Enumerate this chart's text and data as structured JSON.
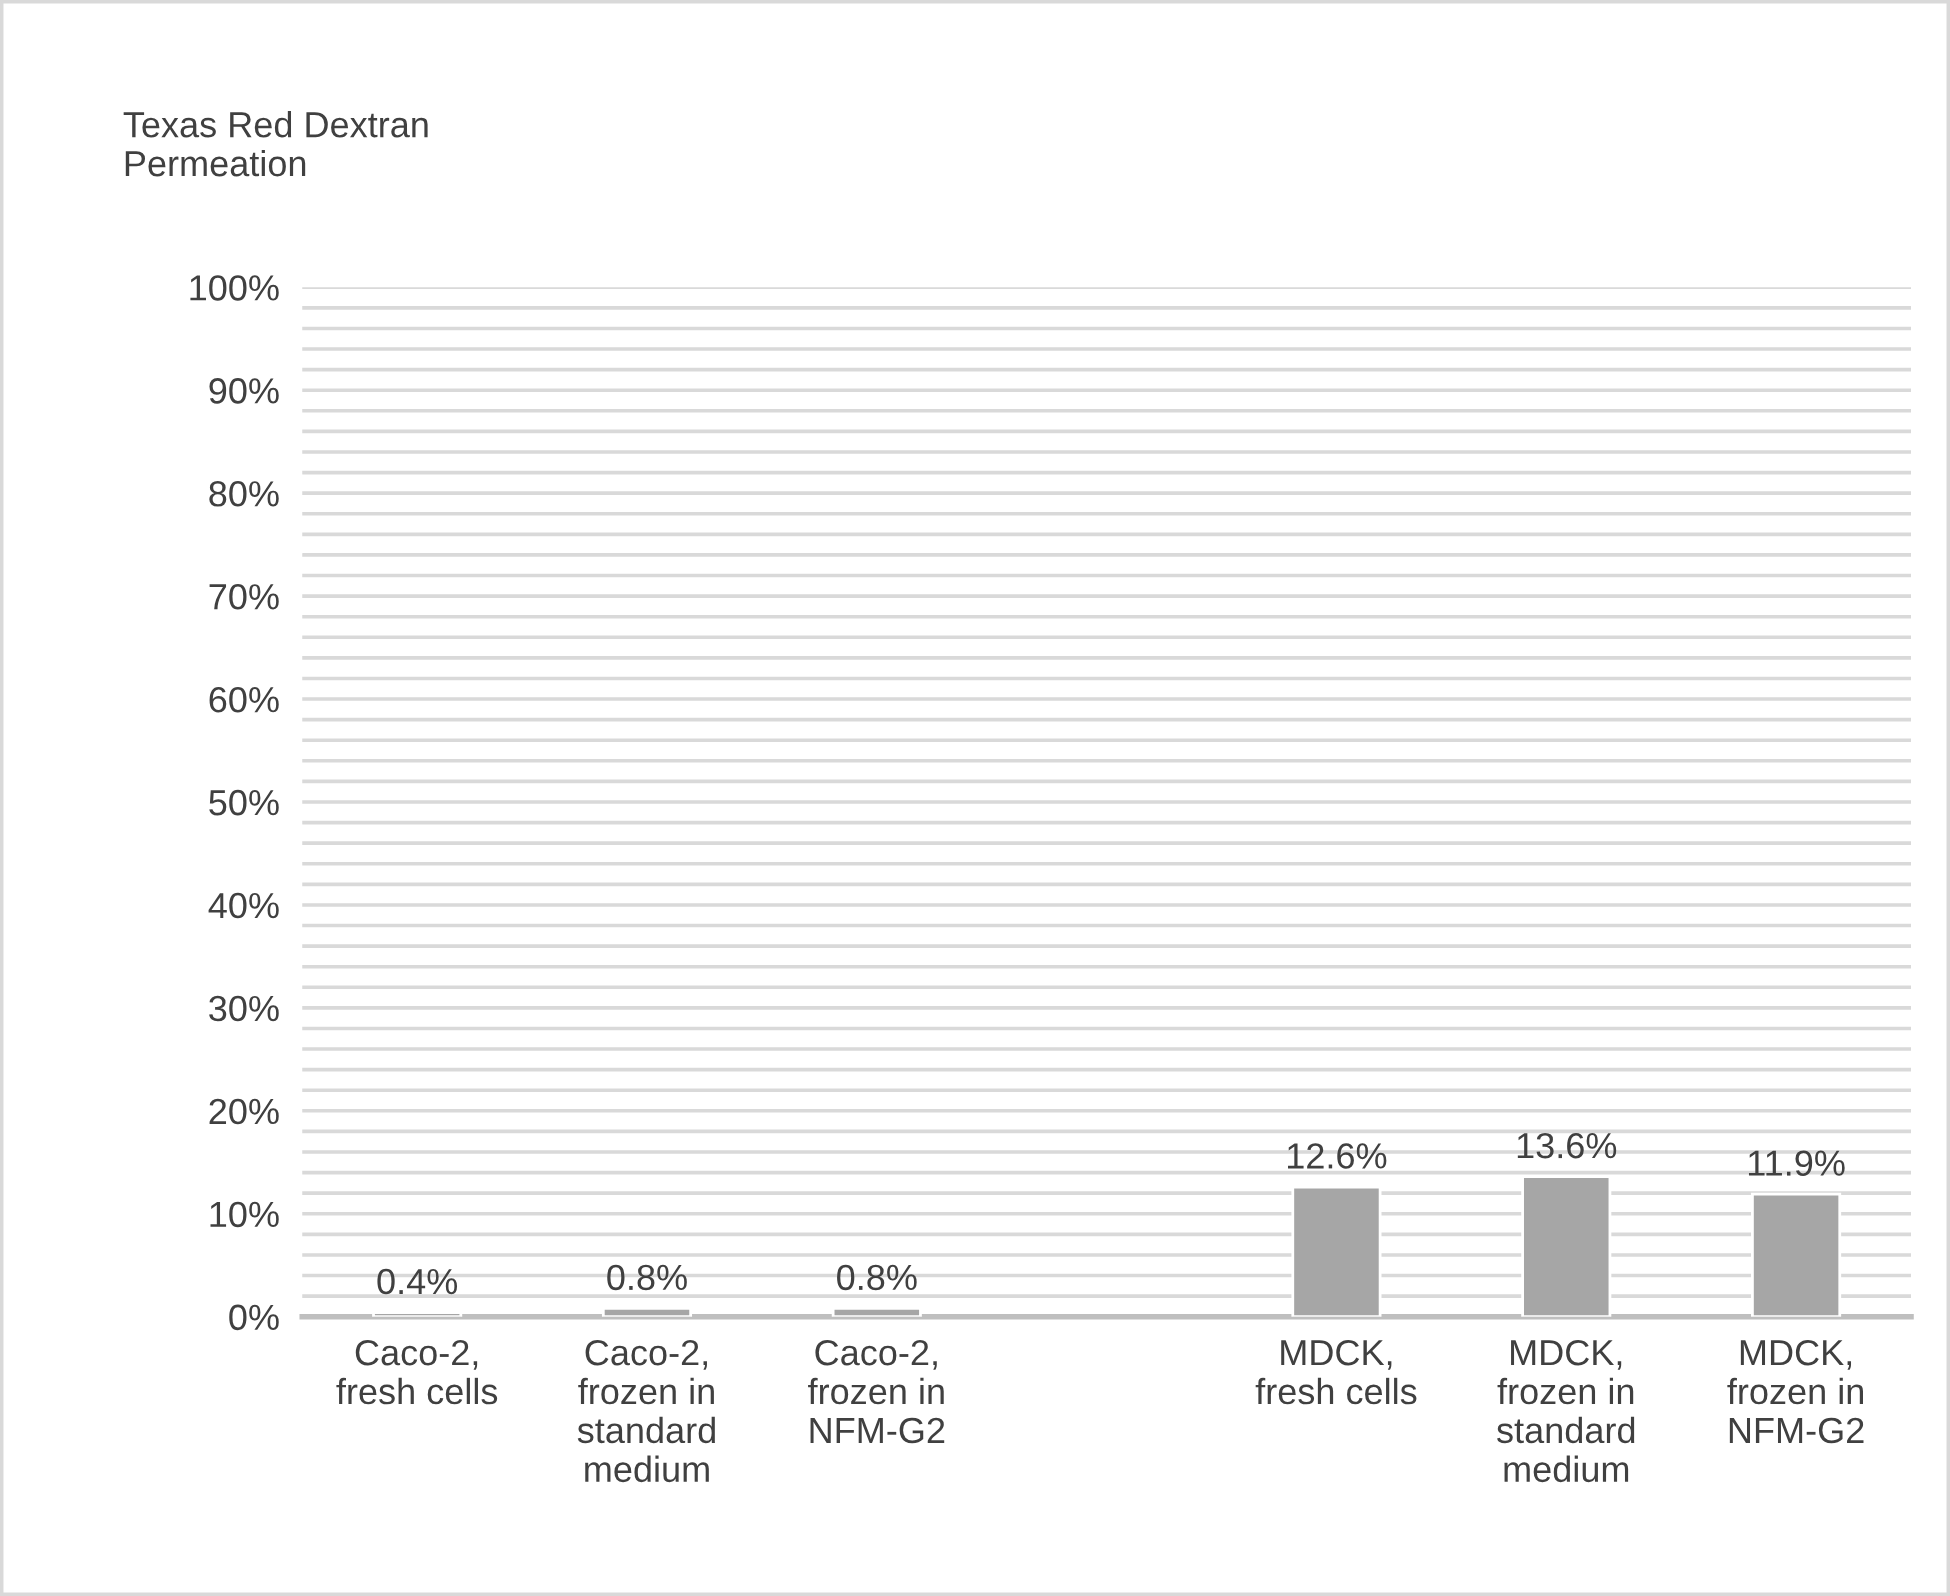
{
  "chart_data": {
    "type": "bar",
    "ylabel": "Texas Red Dextran\nPermeation",
    "categories": [
      "Caco-2,\nfresh cells",
      "Caco-2,\nfrozen in\nstandard\nmedium",
      "Caco-2,\nfrozen in\nNFM-G2",
      null,
      "MDCK,\nfresh cells",
      "MDCK,\nfrozen in\nstandard\nmedium",
      "MDCK,\nfrozen in\nNFM-G2"
    ],
    "values": [
      0.4,
      0.8,
      0.8,
      null,
      12.6,
      13.6,
      11.9
    ],
    "value_labels": [
      "0.4%",
      "0.8%",
      "0.8%",
      null,
      "12.6%",
      "13.6%",
      "11.9%"
    ],
    "color": "#a6a6a6",
    "ylim": [
      0,
      100
    ],
    "yticks": [
      {
        "value": 0,
        "label": "0%"
      },
      {
        "value": 2,
        "label": null
      },
      {
        "value": 4,
        "label": null
      },
      {
        "value": 6,
        "label": null
      },
      {
        "value": 8,
        "label": null
      },
      {
        "value": 10,
        "label": "10%"
      },
      {
        "value": 12,
        "label": null
      },
      {
        "value": 14,
        "label": null
      },
      {
        "value": 16,
        "label": null
      },
      {
        "value": 18,
        "label": null
      },
      {
        "value": 20,
        "label": "20%"
      },
      {
        "value": 22,
        "label": null
      },
      {
        "value": 24,
        "label": null
      },
      {
        "value": 26,
        "label": null
      },
      {
        "value": 28,
        "label": null
      },
      {
        "value": 30,
        "label": "30%"
      },
      {
        "value": 32,
        "label": null
      },
      {
        "value": 34,
        "label": null
      },
      {
        "value": 36,
        "label": null
      },
      {
        "value": 38,
        "label": null
      },
      {
        "value": 40,
        "label": "40%"
      },
      {
        "value": 42,
        "label": null
      },
      {
        "value": 44,
        "label": null
      },
      {
        "value": 46,
        "label": null
      },
      {
        "value": 48,
        "label": null
      },
      {
        "value": 50,
        "label": "50%"
      },
      {
        "value": 52,
        "label": null
      },
      {
        "value": 54,
        "label": null
      },
      {
        "value": 56,
        "label": null
      },
      {
        "value": 58,
        "label": null
      },
      {
        "value": 60,
        "label": "60%"
      },
      {
        "value": 62,
        "label": null
      },
      {
        "value": 64,
        "label": null
      },
      {
        "value": 66,
        "label": null
      },
      {
        "value": 68,
        "label": null
      },
      {
        "value": 70,
        "label": "70%"
      },
      {
        "value": 72,
        "label": null
      },
      {
        "value": 74,
        "label": null
      },
      {
        "value": 76,
        "label": null
      },
      {
        "value": 78,
        "label": null
      },
      {
        "value": 80,
        "label": "80%"
      },
      {
        "value": 82,
        "label": null
      },
      {
        "value": 84,
        "label": null
      },
      {
        "value": 86,
        "label": null
      },
      {
        "value": 88,
        "label": null
      },
      {
        "value": 90,
        "label": "90%"
      },
      {
        "value": 92,
        "label": null
      },
      {
        "value": 94,
        "label": null
      },
      {
        "value": 96,
        "label": null
      },
      {
        "value": 98,
        "label": null
      },
      {
        "value": 100,
        "label": "100%"
      }
    ],
    "grid": "y",
    "legend": false
  }
}
